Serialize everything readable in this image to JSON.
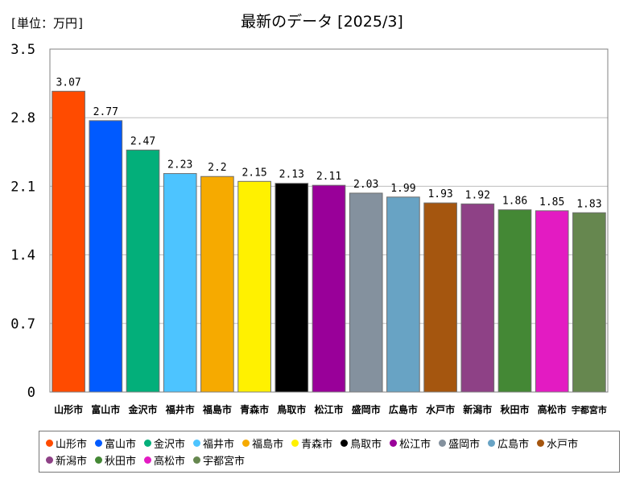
{
  "unit_label": "[単位：万円]",
  "title": "最新のデータ [2025/3]",
  "chart_data": {
    "type": "bar",
    "categories": [
      "山形市",
      "富山市",
      "金沢市",
      "福井市",
      "福島市",
      "青森市",
      "鳥取市",
      "松江市",
      "盛岡市",
      "広島市",
      "水戸市",
      "新潟市",
      "秋田市",
      "高松市",
      "宇都宮市"
    ],
    "values": [
      3.07,
      2.77,
      2.47,
      2.23,
      2.2,
      2.15,
      2.13,
      2.11,
      2.03,
      1.99,
      1.93,
      1.92,
      1.86,
      1.85,
      1.83
    ],
    "value_labels": [
      "3.07",
      "2.77",
      "2.47",
      "2.23",
      "2.2",
      "2.15",
      "2.13",
      "2.11",
      "2.03",
      "1.99",
      "1.93",
      "1.92",
      "1.86",
      "1.85",
      "1.83"
    ],
    "colors": [
      "#FF4B00",
      "#005AFF",
      "#03AF7A",
      "#4DC4FF",
      "#F6AA00",
      "#FFF100",
      "#000000",
      "#990099",
      "#84919E",
      "#68A3C4",
      "#A5560F",
      "#8E4186",
      "#448835",
      "#E31BC2",
      "#66874F"
    ],
    "yticks": [
      "3.5",
      "2.8",
      "2.1",
      "1.4",
      "0.7",
      "0"
    ],
    "ylim": [
      0,
      3.5
    ],
    "grid": true,
    "legend_position": "bottom"
  }
}
